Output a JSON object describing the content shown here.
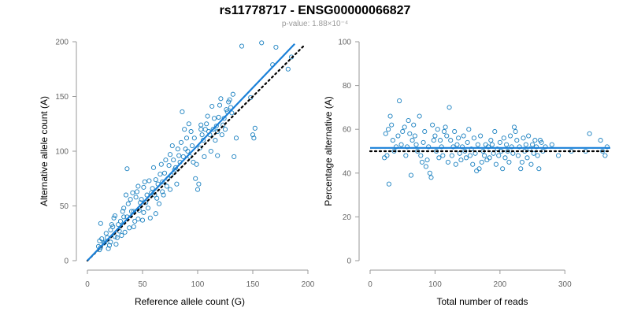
{
  "header": {
    "title": "rs11778717 - ENSG00000066827",
    "subtitle": "p-value: 1.88×10⁻⁴"
  },
  "colors": {
    "points": "#1a80c0",
    "fit_line": "#1a80d8",
    "reference_line": "#000000",
    "axis": "#9a9a9a",
    "tick_text": "#666666"
  },
  "chart_data": [
    {
      "type": "scatter",
      "title": "",
      "xlabel": "Reference allele count (G)",
      "ylabel": "Alternative allele count (A)",
      "xlim": [
        0,
        200
      ],
      "ylim": [
        0,
        200
      ],
      "xticks": [
        "0",
        "50",
        "100",
        "150",
        "200"
      ],
      "yticks": [
        "0",
        "50",
        "100",
        "150",
        "200"
      ],
      "grid": false,
      "fit_line": {
        "style": "solid",
        "points": [
          [
            0,
            0
          ],
          [
            188,
            198
          ]
        ]
      },
      "reference_line": {
        "style": "dotted",
        "points": [
          [
            0,
            0
          ],
          [
            197,
            197
          ]
        ]
      },
      "points": [
        [
          10,
          13
        ],
        [
          11,
          10
        ],
        [
          11,
          18
        ],
        [
          12,
          34
        ],
        [
          12,
          12
        ],
        [
          13,
          20
        ],
        [
          15,
          16
        ],
        [
          16,
          17
        ],
        [
          17,
          25
        ],
        [
          18,
          21
        ],
        [
          19,
          11
        ],
        [
          20,
          14
        ],
        [
          21,
          17
        ],
        [
          21,
          28
        ],
        [
          22,
          33
        ],
        [
          23,
          31
        ],
        [
          24,
          39
        ],
        [
          25,
          22
        ],
        [
          25,
          41
        ],
        [
          26,
          15
        ],
        [
          27,
          21
        ],
        [
          28,
          33
        ],
        [
          29,
          27
        ],
        [
          30,
          36
        ],
        [
          31,
          23
        ],
        [
          32,
          45
        ],
        [
          33,
          40
        ],
        [
          33,
          48
        ],
        [
          34,
          26
        ],
        [
          35,
          60
        ],
        [
          36,
          40
        ],
        [
          36,
          84
        ],
        [
          37,
          52
        ],
        [
          38,
          30
        ],
        [
          39,
          56
        ],
        [
          40,
          45
        ],
        [
          41,
          62
        ],
        [
          42,
          45
        ],
        [
          42,
          31
        ],
        [
          43,
          36
        ],
        [
          44,
          58
        ],
        [
          45,
          63
        ],
        [
          46,
          68
        ],
        [
          46,
          38
        ],
        [
          47,
          46
        ],
        [
          48,
          53
        ],
        [
          49,
          56
        ],
        [
          50,
          37
        ],
        [
          51,
          44
        ],
        [
          51,
          67
        ],
        [
          52,
          72
        ],
        [
          53,
          53
        ],
        [
          54,
          60
        ],
        [
          55,
          48
        ],
        [
          56,
          73
        ],
        [
          57,
          39
        ],
        [
          58,
          62
        ],
        [
          59,
          66
        ],
        [
          60,
          85
        ],
        [
          61,
          60
        ],
        [
          62,
          74
        ],
        [
          62,
          43
        ],
        [
          63,
          57
        ],
        [
          64,
          70
        ],
        [
          65,
          52
        ],
        [
          66,
          79
        ],
        [
          67,
          88
        ],
        [
          68,
          63
        ],
        [
          68,
          72
        ],
        [
          69,
          60
        ],
        [
          70,
          80
        ],
        [
          71,
          92
        ],
        [
          72,
          68
        ],
        [
          73,
          75
        ],
        [
          74,
          87
        ],
        [
          75,
          65
        ],
        [
          75,
          97
        ],
        [
          76,
          78
        ],
        [
          77,
          105
        ],
        [
          78,
          92
        ],
        [
          79,
          83
        ],
        [
          80,
          85
        ],
        [
          81,
          70
        ],
        [
          82,
          102
        ],
        [
          83,
          96
        ],
        [
          84,
          90
        ],
        [
          85,
          108
        ],
        [
          86,
          136
        ],
        [
          87,
          95
        ],
        [
          88,
          120
        ],
        [
          89,
          102
        ],
        [
          90,
          112
        ],
        [
          91,
          100
        ],
        [
          92,
          125
        ],
        [
          93,
          95
        ],
        [
          94,
          118
        ],
        [
          95,
          105
        ],
        [
          96,
          90
        ],
        [
          97,
          112
        ],
        [
          98,
          75
        ],
        [
          99,
          88
        ],
        [
          100,
          65
        ],
        [
          101,
          70
        ],
        [
          102,
          103
        ],
        [
          103,
          120
        ],
        [
          103,
          124
        ],
        [
          104,
          115
        ],
        [
          105,
          110
        ],
        [
          106,
          95
        ],
        [
          107,
          120
        ],
        [
          108,
          125
        ],
        [
          109,
          132
        ],
        [
          110,
          118
        ],
        [
          111,
          115
        ],
        [
          112,
          100
        ],
        [
          113,
          141
        ],
        [
          114,
          120
        ],
        [
          115,
          130
        ],
        [
          116,
          110
        ],
        [
          117,
          123
        ],
        [
          118,
          96
        ],
        [
          118,
          118
        ],
        [
          119,
          131
        ],
        [
          120,
          142
        ],
        [
          121,
          148
        ],
        [
          122,
          115
        ],
        [
          123,
          124
        ],
        [
          124,
          130
        ],
        [
          125,
          120
        ],
        [
          126,
          138
        ],
        [
          127,
          136
        ],
        [
          128,
          145
        ],
        [
          129,
          147
        ],
        [
          130,
          140
        ],
        [
          131,
          135
        ],
        [
          132,
          152
        ],
        [
          133,
          95
        ],
        [
          135,
          112
        ],
        [
          140,
          196
        ],
        [
          148,
          149
        ],
        [
          150,
          115
        ],
        [
          151,
          112
        ],
        [
          152,
          121
        ],
        [
          158,
          199
        ],
        [
          168,
          179
        ],
        [
          171,
          195
        ],
        [
          182,
          175
        ],
        [
          185,
          186
        ]
      ]
    },
    {
      "type": "scatter",
      "title": "",
      "xlabel": "Total number of reads",
      "ylabel": "Percentage alternative (A)",
      "xlim": [
        0,
        370
      ],
      "ylim": [
        0,
        100
      ],
      "xticks": [
        "0",
        "100",
        "200",
        "300"
      ],
      "yticks": [
        "0",
        "20",
        "40",
        "60",
        "80",
        "100"
      ],
      "grid": false,
      "fit_line": {
        "style": "solid",
        "points": [
          [
            0,
            51.5
          ],
          [
            370,
            51.5
          ]
        ]
      },
      "reference_line": {
        "style": "dotted",
        "points": [
          [
            0,
            50
          ],
          [
            370,
            50
          ]
        ]
      },
      "points": [
        [
          22,
          47
        ],
        [
          24,
          58
        ],
        [
          26,
          48
        ],
        [
          28,
          60
        ],
        [
          29,
          35
        ],
        [
          31,
          66
        ],
        [
          33,
          62
        ],
        [
          35,
          55
        ],
        [
          37,
          50
        ],
        [
          40,
          52
        ],
        [
          43,
          57
        ],
        [
          45,
          73
        ],
        [
          48,
          53
        ],
        [
          50,
          59
        ],
        [
          53,
          61
        ],
        [
          55,
          48
        ],
        [
          57,
          52
        ],
        [
          59,
          64
        ],
        [
          61,
          58
        ],
        [
          63,
          39
        ],
        [
          65,
          55
        ],
        [
          67,
          62
        ],
        [
          69,
          57
        ],
        [
          71,
          53
        ],
        [
          73,
          50
        ],
        [
          76,
          66
        ],
        [
          78,
          48
        ],
        [
          80,
          45
        ],
        [
          82,
          54
        ],
        [
          84,
          59
        ],
        [
          86,
          43
        ],
        [
          88,
          46
        ],
        [
          90,
          52
        ],
        [
          92,
          40
        ],
        [
          94,
          38
        ],
        [
          96,
          62
        ],
        [
          98,
          55
        ],
        [
          100,
          57
        ],
        [
          102,
          50
        ],
        [
          104,
          60
        ],
        [
          106,
          47
        ],
        [
          108,
          55
        ],
        [
          110,
          52
        ],
        [
          112,
          48
        ],
        [
          114,
          59
        ],
        [
          116,
          61
        ],
        [
          118,
          57
        ],
        [
          120,
          45
        ],
        [
          122,
          70
        ],
        [
          124,
          55
        ],
        [
          126,
          48
        ],
        [
          128,
          52
        ],
        [
          130,
          59
        ],
        [
          132,
          44
        ],
        [
          134,
          53
        ],
        [
          136,
          56
        ],
        [
          138,
          49
        ],
        [
          140,
          46
        ],
        [
          142,
          52
        ],
        [
          144,
          57
        ],
        [
          146,
          50
        ],
        [
          148,
          47
        ],
        [
          150,
          54
        ],
        [
          152,
          60
        ],
        [
          154,
          48
        ],
        [
          156,
          51
        ],
        [
          158,
          44
        ],
        [
          160,
          56
        ],
        [
          162,
          49
        ],
        [
          164,
          41
        ],
        [
          166,
          53
        ],
        [
          168,
          42
        ],
        [
          170,
          57
        ],
        [
          172,
          45
        ],
        [
          174,
          50
        ],
        [
          176,
          48
        ],
        [
          178,
          53
        ],
        [
          180,
          46
        ],
        [
          182,
          52
        ],
        [
          184,
          47
        ],
        [
          186,
          55
        ],
        [
          188,
          53
        ],
        [
          190,
          49
        ],
        [
          192,
          59
        ],
        [
          194,
          44
        ],
        [
          196,
          51
        ],
        [
          198,
          48
        ],
        [
          200,
          54
        ],
        [
          202,
          50
        ],
        [
          204,
          42
        ],
        [
          206,
          56
        ],
        [
          208,
          47
        ],
        [
          210,
          53
        ],
        [
          212,
          50
        ],
        [
          214,
          45
        ],
        [
          216,
          57
        ],
        [
          218,
          52
        ],
        [
          220,
          49
        ],
        [
          222,
          61
        ],
        [
          224,
          59
        ],
        [
          226,
          55
        ],
        [
          228,
          48
        ],
        [
          230,
          52
        ],
        [
          232,
          42
        ],
        [
          234,
          45
        ],
        [
          236,
          56
        ],
        [
          238,
          50
        ],
        [
          240,
          53
        ],
        [
          242,
          47
        ],
        [
          244,
          57
        ],
        [
          246,
          51
        ],
        [
          248,
          44
        ],
        [
          250,
          53
        ],
        [
          252,
          49
        ],
        [
          254,
          55
        ],
        [
          256,
          52
        ],
        [
          258,
          48
        ],
        [
          260,
          42
        ],
        [
          262,
          55
        ],
        [
          264,
          54
        ],
        [
          266,
          50
        ],
        [
          270,
          52
        ],
        [
          280,
          53
        ],
        [
          290,
          48
        ],
        [
          310,
          50
        ],
        [
          332,
          50
        ],
        [
          338,
          58
        ],
        [
          355,
          55
        ],
        [
          358,
          50
        ],
        [
          362,
          48
        ],
        [
          365,
          52
        ]
      ]
    }
  ]
}
